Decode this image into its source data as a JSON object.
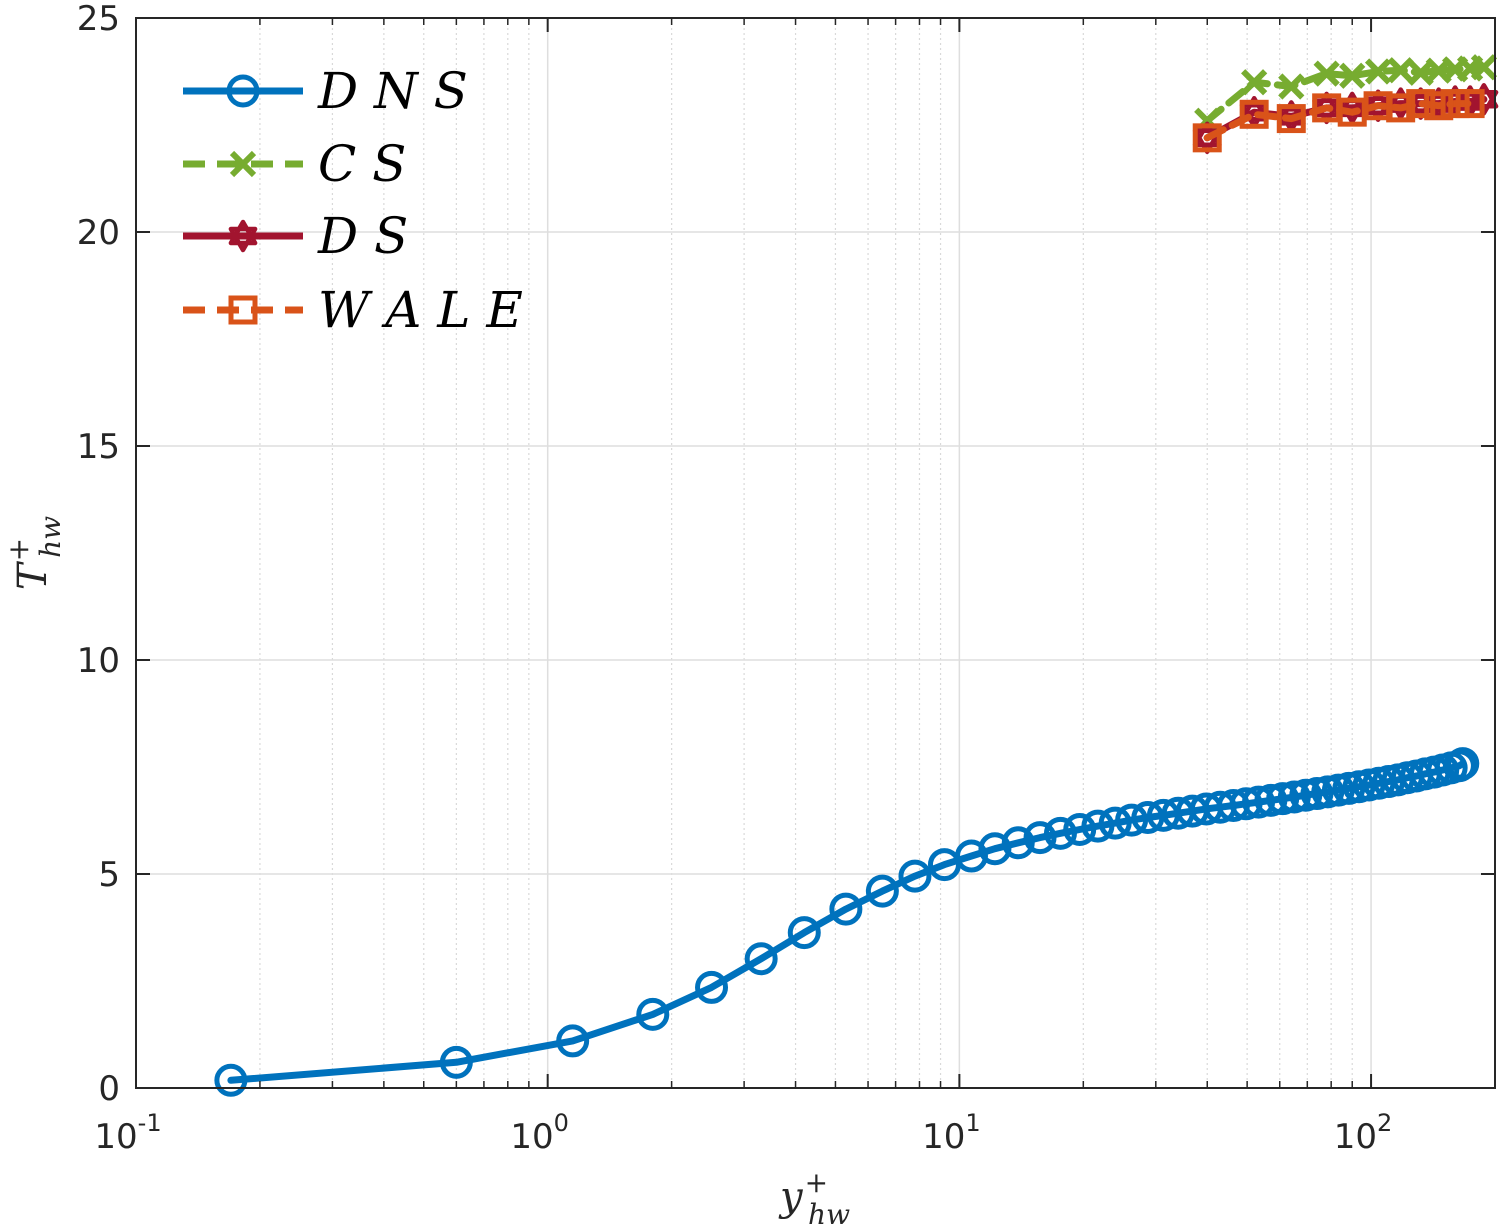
{
  "chart_data": {
    "type": "line",
    "xscale": "log",
    "xlim": [
      0.1,
      200
    ],
    "ylim": [
      0,
      25
    ],
    "xlabel": {
      "base": "y",
      "sup": "+",
      "sub": "hw"
    },
    "ylabel": {
      "base": "T",
      "sup": "+",
      "sub": "hw"
    },
    "x_ticks": [
      {
        "value": 0.1,
        "base": "10",
        "exp": "-1"
      },
      {
        "value": 1,
        "base": "10",
        "exp": "0"
      },
      {
        "value": 10,
        "base": "10",
        "exp": "1"
      },
      {
        "value": 100,
        "base": "10",
        "exp": "2"
      }
    ],
    "y_ticks": [
      {
        "value": 0,
        "label": "0"
      },
      {
        "value": 5,
        "label": "5"
      },
      {
        "value": 10,
        "label": "10"
      },
      {
        "value": 15,
        "label": "15"
      },
      {
        "value": 20,
        "label": "20"
      },
      {
        "value": 25,
        "label": "25"
      }
    ],
    "grid": true,
    "legend_position": "top-left",
    "series": [
      {
        "name": "DNS",
        "color": "#0072BD",
        "dash": "solid",
        "marker": "circle",
        "x": [
          0.17,
          0.6,
          1.15,
          1.8,
          2.5,
          3.3,
          4.2,
          5.3,
          6.5,
          7.8,
          9.2,
          10.7,
          12.2,
          13.9,
          15.7,
          17.6,
          19.6,
          21.7,
          23.9,
          26.2,
          28.7,
          31.3,
          34.0,
          36.8,
          39.8,
          43.0,
          46.3,
          49.7,
          53.3,
          57.1,
          61.0,
          65.1,
          69.4,
          73.9,
          78.5,
          83.3,
          88.3,
          93.5,
          98.9,
          104.5,
          110.3,
          116.3,
          122.5,
          128.9,
          135.5,
          142.3,
          149.3,
          156.5,
          163.9,
          167.0
        ],
        "y": [
          0.18,
          0.6,
          1.1,
          1.72,
          2.35,
          3.02,
          3.63,
          4.18,
          4.6,
          4.95,
          5.22,
          5.42,
          5.59,
          5.73,
          5.85,
          5.95,
          6.04,
          6.12,
          6.19,
          6.26,
          6.32,
          6.37,
          6.42,
          6.47,
          6.52,
          6.56,
          6.6,
          6.64,
          6.68,
          6.72,
          6.76,
          6.8,
          6.84,
          6.88,
          6.92,
          6.96,
          7.0,
          7.04,
          7.08,
          7.12,
          7.16,
          7.2,
          7.25,
          7.29,
          7.34,
          7.38,
          7.43,
          7.48,
          7.53,
          7.58
        ]
      },
      {
        "name": "CS",
        "color": "#77AC30",
        "dash": "dashed",
        "marker": "x",
        "x": [
          40,
          52,
          64,
          78,
          90,
          104,
          118,
          132,
          146,
          160,
          174,
          188
        ],
        "y": [
          22.6,
          23.5,
          23.4,
          23.7,
          23.65,
          23.75,
          23.78,
          23.72,
          23.77,
          23.8,
          23.82,
          23.85
        ]
      },
      {
        "name": "DS",
        "color": "#A2142F",
        "dash": "solid",
        "marker": "hexagram",
        "x": [
          40,
          52,
          64,
          78,
          90,
          104,
          118,
          132,
          146,
          160,
          174,
          188
        ],
        "y": [
          22.2,
          22.8,
          22.7,
          22.9,
          22.9,
          22.95,
          23.0,
          23.0,
          23.0,
          23.05,
          23.05,
          23.1
        ]
      },
      {
        "name": "WALE",
        "color": "#D95319",
        "dash": "dashed",
        "marker": "square",
        "x": [
          40,
          52,
          64,
          78,
          90,
          104,
          118,
          132,
          146,
          160,
          174
        ],
        "y": [
          22.2,
          22.75,
          22.65,
          22.9,
          22.8,
          22.95,
          22.9,
          23.0,
          22.95,
          23.0,
          23.0
        ]
      }
    ]
  }
}
